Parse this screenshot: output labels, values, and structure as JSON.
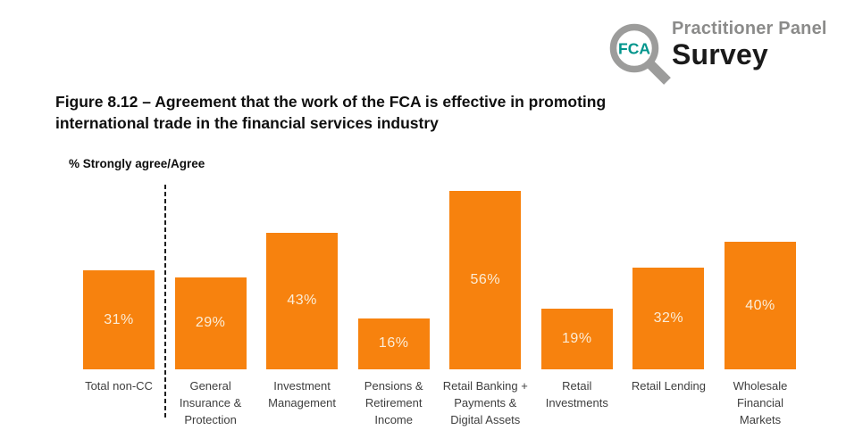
{
  "logo": {
    "fca": "FCA",
    "brand_line1": "Practitioner Panel",
    "brand_line2": "Survey",
    "teal": "#00958C",
    "gray": "#9C9C9B"
  },
  "title_lines": [
    "Figure 8.12 – Agreement that the work of the FCA is effective in promoting",
    "international trade in the financial services industry"
  ],
  "chart_data": {
    "type": "bar",
    "title": "Figure 8.12 – Agreement that the work of the FCA is effective in promoting international trade in the financial services industry",
    "ylabel": "% Strongly agree/Agree",
    "xlabel": "",
    "ylim": [
      0,
      60
    ],
    "grid": false,
    "axes_hidden": true,
    "legend": "none",
    "bar_color": "#F7820E",
    "value_label_color": "#FBEDD8",
    "categories": [
      "Total non-CC",
      "General Insurance & Protection",
      "Investment Management",
      "Pensions & Retirement Income",
      "Retail Banking + Payments & Digital Assets",
      "Retail Investments",
      "Retail Lending",
      "Wholesale Financial Markets"
    ],
    "category_lines": [
      [
        "Total non-CC"
      ],
      [
        "General",
        "Insurance &",
        "Protection"
      ],
      [
        "Investment",
        "Management"
      ],
      [
        "Pensions &",
        "Retirement",
        "Income"
      ],
      [
        "Retail Banking +",
        "Payments &",
        "Digital Assets"
      ],
      [
        "Retail",
        "Investments"
      ],
      [
        "Retail Lending"
      ],
      [
        "Wholesale",
        "Financial",
        "Markets"
      ]
    ],
    "values": [
      31,
      29,
      43,
      16,
      56,
      19,
      32,
      40
    ],
    "value_labels": [
      "31%",
      "29%",
      "43%",
      "16%",
      "56%",
      "19%",
      "32%",
      "40%"
    ],
    "separator_after_category": "Total non-CC"
  }
}
